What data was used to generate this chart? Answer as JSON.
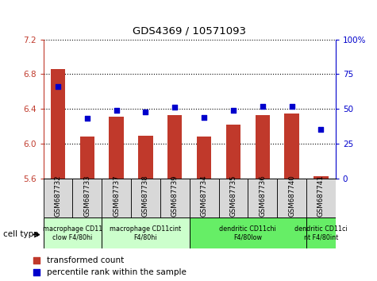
{
  "title": "GDS4369 / 10571093",
  "samples": [
    "GSM687732",
    "GSM687733",
    "GSM687737",
    "GSM687738",
    "GSM687739",
    "GSM687734",
    "GSM687735",
    "GSM687736",
    "GSM687740",
    "GSM687741"
  ],
  "bar_values": [
    6.86,
    6.08,
    6.31,
    6.09,
    6.33,
    6.08,
    6.22,
    6.33,
    6.35,
    5.63
  ],
  "dot_values": [
    66,
    43,
    49,
    48,
    51,
    44,
    49,
    52,
    52,
    35
  ],
  "ylim_left": [
    5.6,
    7.2
  ],
  "ylim_right": [
    0,
    100
  ],
  "yticks_left": [
    5.6,
    6.0,
    6.4,
    6.8,
    7.2
  ],
  "yticks_right": [
    0,
    25,
    50,
    75,
    100
  ],
  "bar_color": "#c0392b",
  "dot_color": "#0000cc",
  "legend_items": [
    {
      "label": "transformed count",
      "color": "#c0392b"
    },
    {
      "label": "percentile rank within the sample",
      "color": "#0000cc"
    }
  ],
  "cell_type_label": "cell type",
  "group_defs": [
    {
      "start": 0,
      "end": 2,
      "label": "macrophage CD11\nclow F4/80hi",
      "color": "#ccffcc"
    },
    {
      "start": 2,
      "end": 5,
      "label": "macrophage CD11cint\nF4/80hi",
      "color": "#ccffcc"
    },
    {
      "start": 5,
      "end": 9,
      "label": "dendritic CD11chi\nF4/80low",
      "color": "#66ee66"
    },
    {
      "start": 9,
      "end": 10,
      "label": "dendritic CD11ci\nnt F4/80int",
      "color": "#66ee66"
    }
  ]
}
